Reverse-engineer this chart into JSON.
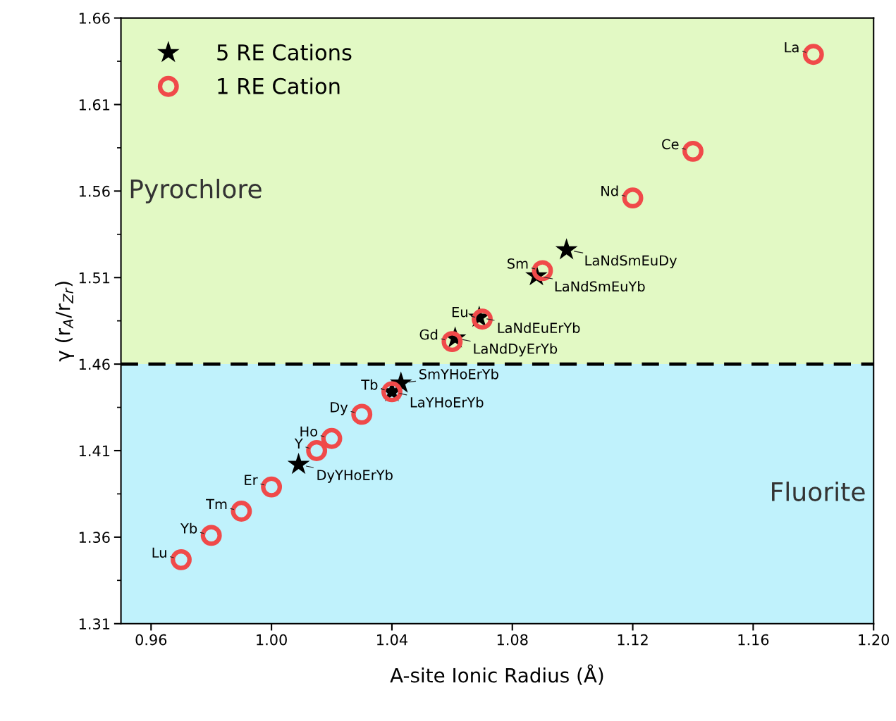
{
  "chart_data": {
    "type": "scatter",
    "xlabel": "A-site Ionic Radius (Å)",
    "ylabel": "γ (r$_{A}$/r$_{Zr}$)",
    "xlim": [
      0.95,
      1.2
    ],
    "xticks": [
      {
        "value": 0.96,
        "label": "0.96"
      },
      {
        "value": 1.0,
        "label": "1.00"
      },
      {
        "value": 1.04,
        "label": "1.04"
      },
      {
        "value": 1.08,
        "label": "1.08"
      },
      {
        "value": 1.12,
        "label": "1.12"
      },
      {
        "value": 1.16,
        "label": "1.16"
      },
      {
        "value": 1.2,
        "label": "1.20"
      }
    ],
    "ylim": [
      1.31,
      1.66
    ],
    "yticks": [
      1.31,
      1.36,
      1.41,
      1.46,
      1.51,
      1.56,
      1.61,
      1.66
    ],
    "grid": false,
    "legend": "top left",
    "bands": [
      {
        "axis": "y",
        "from": 1.46,
        "to": 1.66,
        "label": "Pyrochlore",
        "color": "#e2f9c4"
      },
      {
        "axis": "y",
        "from": 1.31,
        "to": 1.46,
        "label": "Fluorite",
        "color": "#c0f2fc"
      }
    ],
    "ref_lines": [
      {
        "axis": "y",
        "value": 1.46,
        "color": "#000000",
        "line_style": "dashed"
      }
    ],
    "series": [
      {
        "name": "5 RE Cations",
        "color": "#000000",
        "marker": "star",
        "x": [
          1.098,
          1.088,
          1.069,
          1.061,
          1.043,
          1.04,
          1.009
        ],
        "values": [
          1.526,
          1.511,
          1.487,
          1.475,
          1.449,
          1.444,
          1.402
        ]
      },
      {
        "name": "1 RE Cation",
        "color": "#f04a4a",
        "marker": "circle",
        "x": [
          1.18,
          1.14,
          1.12,
          1.09,
          1.07,
          1.06,
          1.04,
          1.03,
          1.02,
          1.015,
          1.0,
          0.99,
          0.98,
          0.97
        ],
        "values": [
          1.639,
          1.583,
          1.556,
          1.514,
          1.486,
          1.473,
          1.444,
          1.431,
          1.417,
          1.41,
          1.389,
          1.375,
          1.361,
          1.347
        ]
      }
    ],
    "annotations": [
      {
        "text": "LaNdSmEuDy",
        "x": 1.098,
        "y": 1.526
      },
      {
        "text": "LaNdSmEuYb",
        "x": 1.088,
        "y": 1.511
      },
      {
        "text": "LaNdEuErYb",
        "x": 1.069,
        "y": 1.487
      },
      {
        "text": "LaNdDyErYb",
        "x": 1.061,
        "y": 1.475
      },
      {
        "text": "SmYHoErYb",
        "x": 1.043,
        "y": 1.449
      },
      {
        "text": "LaYHoErYb",
        "x": 1.04,
        "y": 1.444
      },
      {
        "text": "DyYHoErYb",
        "x": 1.009,
        "y": 1.402
      },
      {
        "text": "La",
        "x": 1.18,
        "y": 1.639
      },
      {
        "text": "Ce",
        "x": 1.14,
        "y": 1.583
      },
      {
        "text": "Nd",
        "x": 1.12,
        "y": 1.556
      },
      {
        "text": "Sm",
        "x": 1.09,
        "y": 1.514
      },
      {
        "text": "Eu",
        "x": 1.07,
        "y": 1.486
      },
      {
        "text": "Gd",
        "x": 1.06,
        "y": 1.473
      },
      {
        "text": "Tb",
        "x": 1.04,
        "y": 1.444
      },
      {
        "text": "Dy",
        "x": 1.03,
        "y": 1.431
      },
      {
        "text": "Ho",
        "x": 1.02,
        "y": 1.417
      },
      {
        "text": "Y",
        "x": 1.015,
        "y": 1.41
      },
      {
        "text": "Er",
        "x": 1.0,
        "y": 1.389
      },
      {
        "text": "Tm",
        "x": 0.99,
        "y": 1.375
      },
      {
        "text": "Yb",
        "x": 0.98,
        "y": 1.361
      },
      {
        "text": "Lu",
        "x": 0.97,
        "y": 1.347
      }
    ]
  }
}
